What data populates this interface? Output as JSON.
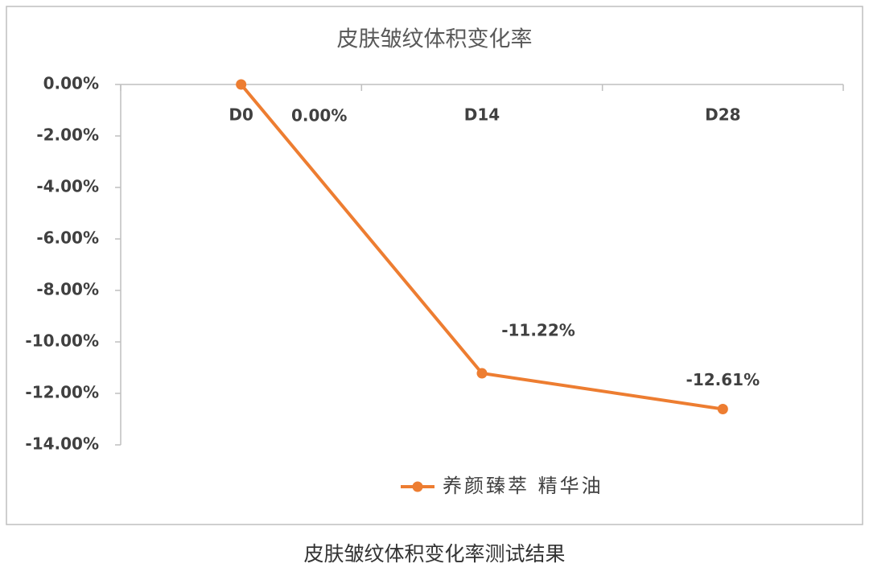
{
  "chart_data": {
    "type": "line",
    "title": "皮肤皱纹体积变化率",
    "categories": [
      "D0",
      "D14",
      "D28"
    ],
    "series": [
      {
        "name": "养颜臻萃 精华油",
        "color": "#ED7D31",
        "values": [
          0,
          -11.22,
          -12.61
        ],
        "value_labels": [
          "0.00%",
          "-11.22%",
          "-12.61%"
        ]
      }
    ],
    "ylim": [
      -14,
      0
    ],
    "yticks": [
      {
        "value": 0,
        "label": "0.00%"
      },
      {
        "value": -2,
        "label": "-2.00%"
      },
      {
        "value": -4,
        "label": "-4.00%"
      },
      {
        "value": -6,
        "label": "-6.00%"
      },
      {
        "value": -8,
        "label": "-8.00%"
      },
      {
        "value": -10,
        "label": "-10.00%"
      },
      {
        "value": -12,
        "label": "-12.00%"
      },
      {
        "value": -14,
        "label": "-14.00%"
      }
    ],
    "grid": false,
    "legend": "bottom"
  },
  "caption": "皮肤皱纹体积变化率测试结果"
}
